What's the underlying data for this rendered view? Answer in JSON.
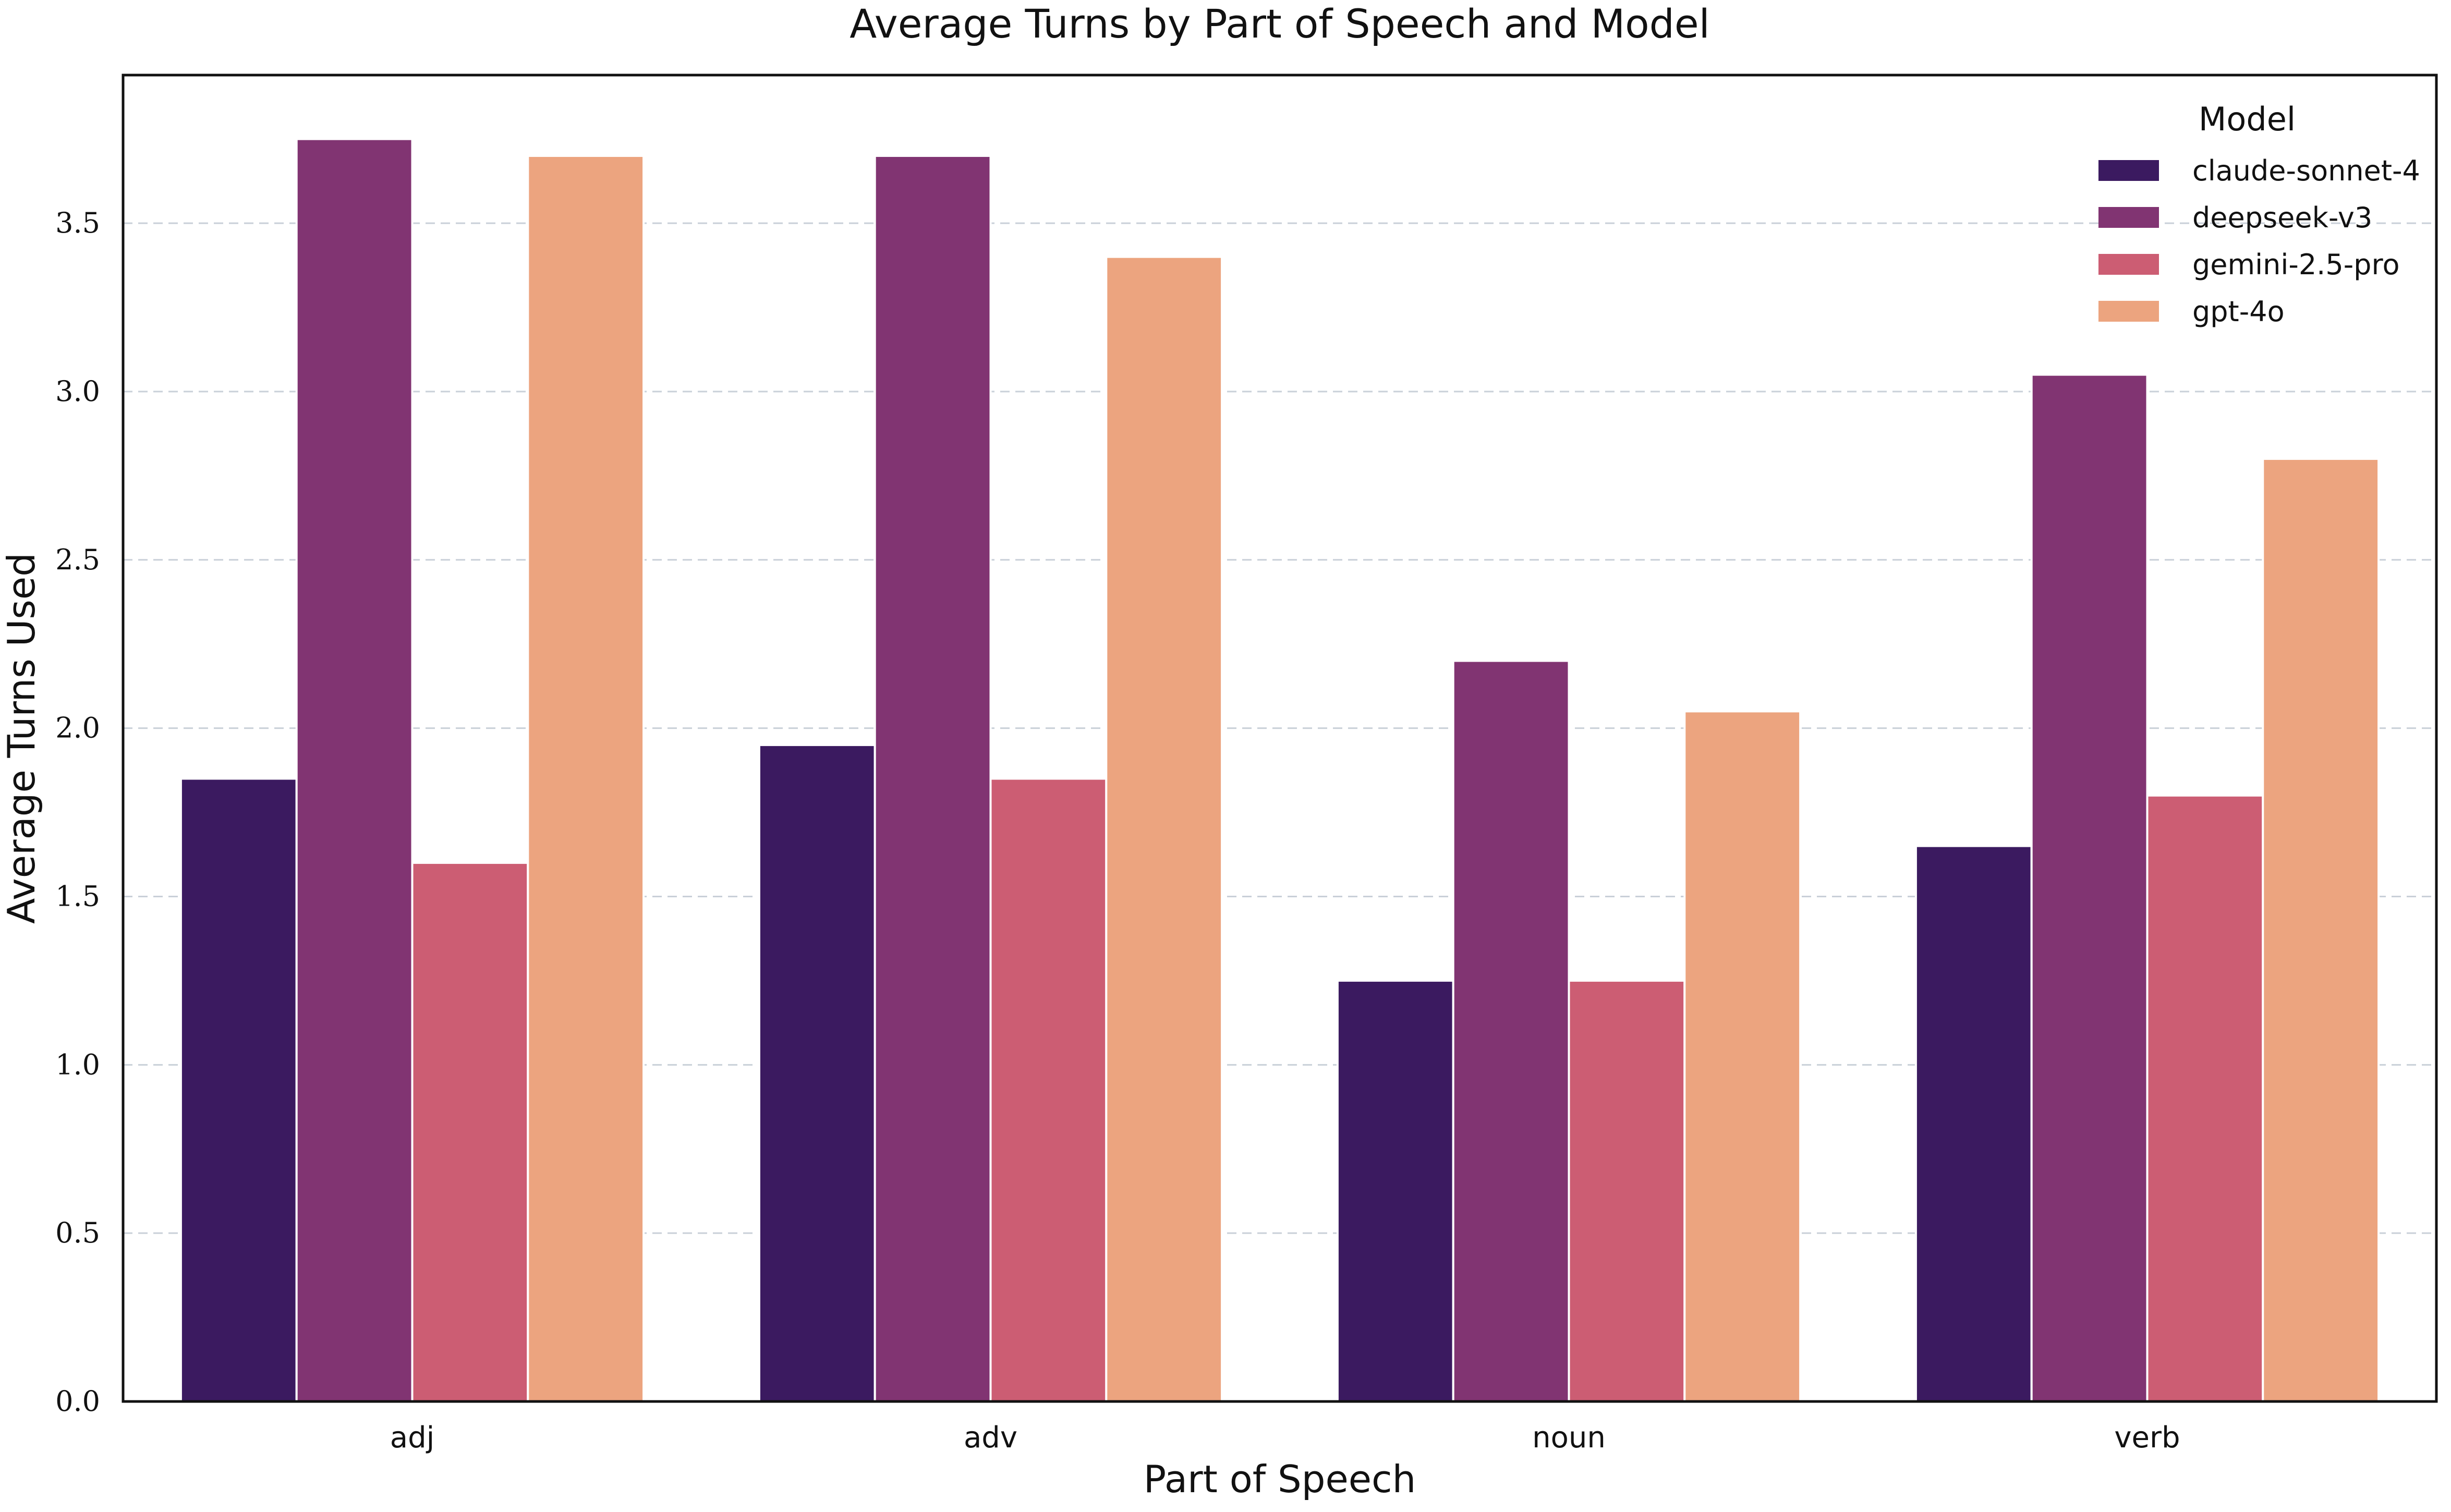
{
  "chart_data": {
    "type": "bar",
    "title": "Average Turns by Part of Speech and Model",
    "xlabel": "Part of Speech",
    "ylabel": "Average Turns Used",
    "categories": [
      "adj",
      "adv",
      "noun",
      "verb"
    ],
    "ylim": [
      0,
      3.94
    ],
    "yticks": [
      "0.0",
      "0.5",
      "1.0",
      "1.5",
      "2.0",
      "2.5",
      "3.0",
      "3.5"
    ],
    "grid": "horizontal dashed",
    "legend": {
      "title": "Model",
      "placement": "top-right"
    },
    "series": [
      {
        "name": "claude-sonnet-4",
        "color": "#3b1a60",
        "values": [
          1.85,
          1.95,
          1.25,
          1.65
        ]
      },
      {
        "name": "deepseek-v3",
        "color": "#813472",
        "values": [
          3.75,
          3.7,
          2.2,
          3.05
        ]
      },
      {
        "name": "gemini-2.5-pro",
        "color": "#cc5d73",
        "values": [
          1.6,
          1.85,
          1.25,
          1.8
        ]
      },
      {
        "name": "gpt-4o",
        "color": "#eca47f",
        "values": [
          3.7,
          3.4,
          2.05,
          2.8
        ]
      }
    ]
  }
}
